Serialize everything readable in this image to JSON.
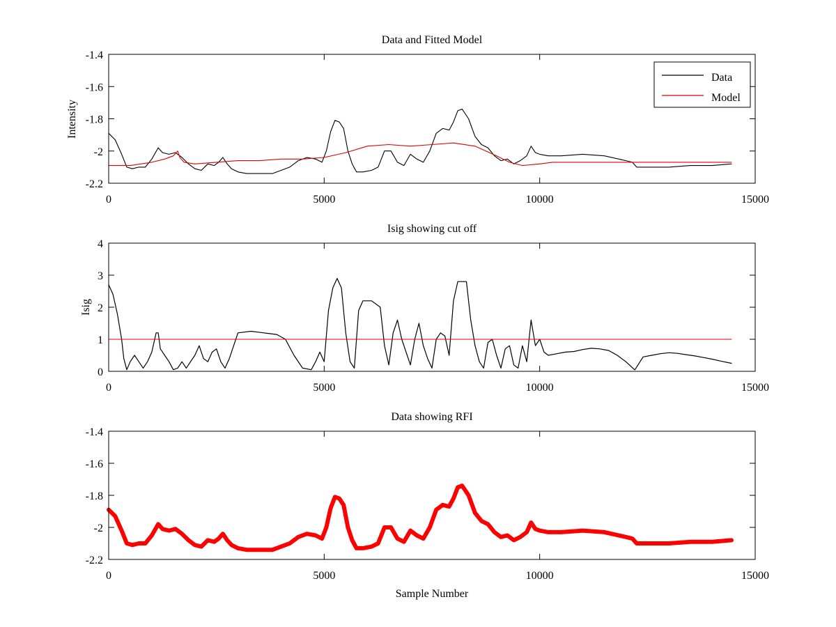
{
  "chart_data": [
    {
      "type": "line",
      "title": "Data and Fitted Model",
      "xlabel": "",
      "ylabel": "Intensity",
      "xlim": [
        0,
        15000
      ],
      "ylim": [
        -2.2,
        -1.4
      ],
      "xticks": [
        0,
        5000,
        10000,
        15000
      ],
      "xtick_labels": [
        "0",
        "5000",
        "10000",
        "15000"
      ],
      "yticks": [
        -2.2,
        -2.0,
        -1.8,
        -1.6,
        -1.4
      ],
      "ytick_labels": [
        "-2.2",
        "-2",
        "-1.8",
        "-1.6",
        "-1.4"
      ],
      "grid": false,
      "legend": "top-right",
      "series": [
        {
          "name": "Data",
          "color": "#000000",
          "x": [
            0,
            150,
            300,
            420,
            550,
            700,
            850,
            1000,
            1150,
            1250,
            1400,
            1550,
            1700,
            1850,
            2000,
            2150,
            2300,
            2450,
            2550,
            2650,
            2750,
            2850,
            3000,
            3200,
            3500,
            3800,
            4000,
            4200,
            4400,
            4600,
            4800,
            4950,
            5050,
            5150,
            5250,
            5350,
            5450,
            5550,
            5650,
            5750,
            5900,
            6100,
            6250,
            6400,
            6550,
            6700,
            6850,
            7000,
            7150,
            7300,
            7450,
            7600,
            7750,
            7900,
            8000,
            8100,
            8200,
            8350,
            8500,
            8650,
            8800,
            8950,
            9100,
            9250,
            9400,
            9550,
            9700,
            9800,
            9900,
            10000,
            10200,
            10500,
            11000,
            11500,
            12000,
            12150,
            12250,
            12500,
            13000,
            13500,
            14000,
            14450
          ],
          "y": [
            -1.89,
            -1.93,
            -2.02,
            -2.1,
            -2.11,
            -2.1,
            -2.1,
            -2.05,
            -1.98,
            -2.01,
            -2.02,
            -2.01,
            -2.04,
            -2.08,
            -2.11,
            -2.12,
            -2.08,
            -2.09,
            -2.07,
            -2.04,
            -2.08,
            -2.11,
            -2.13,
            -2.14,
            -2.14,
            -2.14,
            -2.12,
            -2.1,
            -2.06,
            -2.04,
            -2.05,
            -2.07,
            -2.0,
            -1.88,
            -1.81,
            -1.82,
            -1.86,
            -2.0,
            -2.08,
            -2.13,
            -2.13,
            -2.12,
            -2.1,
            -2.0,
            -2.0,
            -2.07,
            -2.09,
            -2.02,
            -2.05,
            -2.07,
            -2.0,
            -1.89,
            -1.86,
            -1.87,
            -1.82,
            -1.75,
            -1.74,
            -1.8,
            -1.91,
            -1.96,
            -1.98,
            -2.03,
            -2.06,
            -2.05,
            -2.08,
            -2.06,
            -2.03,
            -1.97,
            -2.01,
            -2.02,
            -2.03,
            -2.03,
            -2.02,
            -2.03,
            -2.06,
            -2.07,
            -2.1,
            -2.1,
            -2.1,
            -2.09,
            -2.09,
            -2.08
          ]
        },
        {
          "name": "Model",
          "color": "#e00000",
          "x": [
            0,
            500,
            1000,
            1300,
            1500,
            1600,
            1650,
            1750,
            2000,
            2500,
            3000,
            3200,
            3500,
            4000,
            4500,
            5000,
            5500,
            6000,
            6500,
            7000,
            7500,
            8000,
            8500,
            9000,
            9300,
            9600,
            10000,
            10300,
            10600,
            11000,
            11500,
            12000,
            12500,
            13000,
            13500,
            14000,
            14450
          ],
          "y": [
            -2.09,
            -2.09,
            -2.07,
            -2.05,
            -2.03,
            -2.0,
            -2.04,
            -2.07,
            -2.08,
            -2.07,
            -2.06,
            -2.06,
            -2.06,
            -2.05,
            -2.05,
            -2.04,
            -2.01,
            -1.97,
            -1.96,
            -1.97,
            -1.96,
            -1.95,
            -1.97,
            -2.03,
            -2.07,
            -2.09,
            -2.08,
            -2.07,
            -2.07,
            -2.07,
            -2.07,
            -2.07,
            -2.07,
            -2.07,
            -2.07,
            -2.07,
            -2.07
          ]
        }
      ]
    },
    {
      "type": "line",
      "title": "Isig showing cut off",
      "xlabel": "",
      "ylabel": "Isig",
      "xlim": [
        0,
        15000
      ],
      "ylim": [
        0,
        4
      ],
      "xticks": [
        0,
        5000,
        10000,
        15000
      ],
      "xtick_labels": [
        "0",
        "5000",
        "10000",
        "15000"
      ],
      "yticks": [
        0,
        1,
        2,
        3,
        4
      ],
      "ytick_labels": [
        "0",
        "1",
        "2",
        "3",
        "4"
      ],
      "grid": false,
      "series": [
        {
          "color": "#000000",
          "x": [
            0,
            100,
            200,
            300,
            350,
            420,
            500,
            600,
            700,
            800,
            900,
            1000,
            1100,
            1150,
            1200,
            1300,
            1400,
            1500,
            1600,
            1700,
            1800,
            1900,
            2000,
            2100,
            2200,
            2300,
            2400,
            2500,
            2600,
            2700,
            2800,
            2900,
            3000,
            3300,
            3600,
            3900,
            4100,
            4300,
            4500,
            4700,
            4800,
            4900,
            5000,
            5100,
            5200,
            5300,
            5400,
            5500,
            5600,
            5700,
            5800,
            5900,
            6100,
            6300,
            6400,
            6500,
            6600,
            6700,
            6800,
            6900,
            7000,
            7100,
            7200,
            7300,
            7400,
            7500,
            7600,
            7700,
            7800,
            7900,
            8000,
            8100,
            8300,
            8400,
            8500,
            8600,
            8700,
            8800,
            8900,
            9000,
            9100,
            9200,
            9300,
            9400,
            9500,
            9600,
            9700,
            9800,
            9900,
            10000,
            10100,
            10200,
            10400,
            10600,
            10800,
            11000,
            11200,
            11400,
            11600,
            11800,
            12000,
            12200,
            12210,
            12400,
            12600,
            12800,
            13000,
            13200,
            13400,
            13600,
            13800,
            14000,
            14200,
            14450
          ],
          "y": [
            2.7,
            2.4,
            1.8,
            1.0,
            0.4,
            0.05,
            0.3,
            0.5,
            0.3,
            0.1,
            0.3,
            0.6,
            1.2,
            1.2,
            0.7,
            0.5,
            0.3,
            0.05,
            0.1,
            0.3,
            0.1,
            0.3,
            0.5,
            0.8,
            0.4,
            0.3,
            0.6,
            0.7,
            0.3,
            0.1,
            0.4,
            0.8,
            1.2,
            1.25,
            1.2,
            1.15,
            1.0,
            0.5,
            0.1,
            0.05,
            0.3,
            0.6,
            0.3,
            1.9,
            2.6,
            2.9,
            2.6,
            1.2,
            0.3,
            0.1,
            1.9,
            2.2,
            2.2,
            2.0,
            0.8,
            0.2,
            1.2,
            1.6,
            1.0,
            0.6,
            0.2,
            1.0,
            1.5,
            0.8,
            0.4,
            0.1,
            1.0,
            1.2,
            1.1,
            0.5,
            2.2,
            2.8,
            2.8,
            1.6,
            0.8,
            0.3,
            0.1,
            0.9,
            1.0,
            0.5,
            0.1,
            0.7,
            0.8,
            0.2,
            0.1,
            0.8,
            0.3,
            1.6,
            0.8,
            1.0,
            0.6,
            0.5,
            0.55,
            0.6,
            0.62,
            0.68,
            0.72,
            0.7,
            0.65,
            0.5,
            0.3,
            0.05,
            0.05,
            0.45,
            0.5,
            0.55,
            0.58,
            0.56,
            0.52,
            0.48,
            0.43,
            0.38,
            0.32,
            0.25
          ]
        },
        {
          "color": "#e00000",
          "x": [
            0,
            14450
          ],
          "y": [
            1,
            1
          ]
        }
      ]
    },
    {
      "type": "line",
      "title": "Data showing RFI",
      "xlabel": "Sample Number",
      "ylabel": "",
      "xlim": [
        0,
        15000
      ],
      "ylim": [
        -2.2,
        -1.4
      ],
      "xticks": [
        0,
        5000,
        10000,
        15000
      ],
      "xtick_labels": [
        "0",
        "5000",
        "10000",
        "15000"
      ],
      "yticks": [
        -2.2,
        -2.0,
        -1.8,
        -1.6,
        -1.4
      ],
      "ytick_labels": [
        "-2.2",
        "-2",
        "-1.8",
        "-1.6",
        "-1.4"
      ],
      "grid": false,
      "series": [
        {
          "color": "#ff0000",
          "x": [
            0,
            150,
            300,
            420,
            550,
            700,
            850,
            1000,
            1150,
            1250,
            1400,
            1550,
            1700,
            1850,
            2000,
            2150,
            2300,
            2450,
            2550,
            2650,
            2750,
            2850,
            3000,
            3200,
            3500,
            3800,
            4000,
            4200,
            4400,
            4600,
            4800,
            4950,
            5050,
            5150,
            5250,
            5350,
            5450,
            5550,
            5650,
            5750,
            5900,
            6100,
            6250,
            6400,
            6550,
            6700,
            6850,
            7000,
            7150,
            7300,
            7450,
            7600,
            7750,
            7900,
            8000,
            8100,
            8200,
            8350,
            8500,
            8650,
            8800,
            8950,
            9100,
            9250,
            9400,
            9550,
            9700,
            9800,
            9900,
            10000,
            10200,
            10500,
            11000,
            11500,
            12000,
            12150,
            12250,
            12500,
            13000,
            13500,
            14000,
            14450
          ],
          "y": [
            -1.89,
            -1.93,
            -2.02,
            -2.1,
            -2.11,
            -2.1,
            -2.1,
            -2.05,
            -1.98,
            -2.01,
            -2.02,
            -2.01,
            -2.04,
            -2.08,
            -2.11,
            -2.12,
            -2.08,
            -2.09,
            -2.07,
            -2.04,
            -2.08,
            -2.11,
            -2.13,
            -2.14,
            -2.14,
            -2.14,
            -2.12,
            -2.1,
            -2.06,
            -2.04,
            -2.05,
            -2.07,
            -2.0,
            -1.88,
            -1.81,
            -1.82,
            -1.86,
            -2.0,
            -2.08,
            -2.13,
            -2.13,
            -2.12,
            -2.1,
            -2.0,
            -2.0,
            -2.07,
            -2.09,
            -2.02,
            -2.05,
            -2.07,
            -2.0,
            -1.89,
            -1.86,
            -1.87,
            -1.82,
            -1.75,
            -1.74,
            -1.8,
            -1.91,
            -1.96,
            -1.98,
            -2.03,
            -2.06,
            -2.05,
            -2.08,
            -2.06,
            -2.03,
            -1.97,
            -2.01,
            -2.02,
            -2.03,
            -2.03,
            -2.02,
            -2.03,
            -2.06,
            -2.07,
            -2.1,
            -2.1,
            -2.1,
            -2.09,
            -2.09,
            -2.08
          ]
        }
      ]
    }
  ]
}
